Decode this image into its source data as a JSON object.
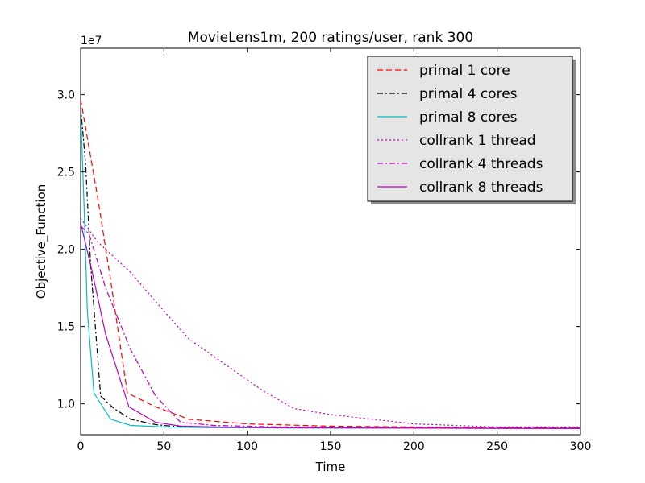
{
  "chart_data": {
    "type": "line",
    "title": "MovieLens1m, 200 ratings/user, rank 300",
    "xlabel": "Time",
    "ylabel": "Objective_Function",
    "y_offset_label": "1e7",
    "xlim": [
      0,
      300
    ],
    "ylim": [
      0.8,
      3.3
    ],
    "y_scale_factor": 10000000,
    "xticks": [
      0,
      50,
      100,
      150,
      200,
      250,
      300
    ],
    "xtick_labels": [
      "0",
      "50",
      "100",
      "150",
      "200",
      "250",
      "300"
    ],
    "yticks": [
      1.0,
      1.5,
      2.0,
      2.5,
      3.0
    ],
    "ytick_labels": [
      "1.0",
      "1.5",
      "2.0",
      "2.5",
      "3.0"
    ],
    "grid": false,
    "legend_position": "top-right",
    "series": [
      {
        "name": "primal 1 core",
        "color": "#ff0000",
        "dash": "dashed",
        "x": [
          0,
          10,
          18,
          28,
          45,
          65,
          100,
          150,
          200,
          300
        ],
        "y": [
          2.97,
          2.35,
          1.8,
          1.07,
          0.98,
          0.9,
          0.87,
          0.855,
          0.85,
          0.845
        ]
      },
      {
        "name": "primal 4 cores",
        "color": "#000000",
        "dash": "dashdot",
        "x": [
          0,
          3,
          6,
          12,
          20,
          30,
          45,
          60,
          100,
          300
        ],
        "y": [
          2.92,
          2.55,
          1.9,
          1.05,
          0.97,
          0.9,
          0.865,
          0.85,
          0.845,
          0.84
        ]
      },
      {
        "name": "primal 8 cores",
        "color": "#00bfbf",
        "dash": "solid",
        "x": [
          0,
          2,
          4,
          8,
          18,
          30,
          50,
          80,
          300
        ],
        "y": [
          2.9,
          2.3,
          1.6,
          1.07,
          0.9,
          0.86,
          0.85,
          0.845,
          0.84
        ]
      },
      {
        "name": "collrank 1 thread",
        "color": "#bf00bf",
        "dash": "dotted",
        "x": [
          0,
          10,
          30,
          50,
          65,
          90,
          110,
          128,
          150,
          200,
          250,
          300
        ],
        "y": [
          2.2,
          2.05,
          1.85,
          1.6,
          1.42,
          1.23,
          1.08,
          0.97,
          0.93,
          0.87,
          0.85,
          0.85
        ]
      },
      {
        "name": "collrank 4 threads",
        "color": "#bf00bf",
        "dash": "dashdot",
        "x": [
          0,
          5,
          15,
          30,
          45,
          60,
          80,
          120,
          300
        ],
        "y": [
          2.15,
          2.1,
          1.75,
          1.35,
          1.05,
          0.88,
          0.86,
          0.85,
          0.845
        ]
      },
      {
        "name": "collrank 8 threads",
        "color": "#bf00bf",
        "dash": "solid",
        "x": [
          0,
          7,
          15,
          29,
          45,
          60,
          80,
          120,
          300
        ],
        "y": [
          2.17,
          1.85,
          1.45,
          0.98,
          0.88,
          0.855,
          0.85,
          0.845,
          0.84
        ]
      }
    ]
  }
}
